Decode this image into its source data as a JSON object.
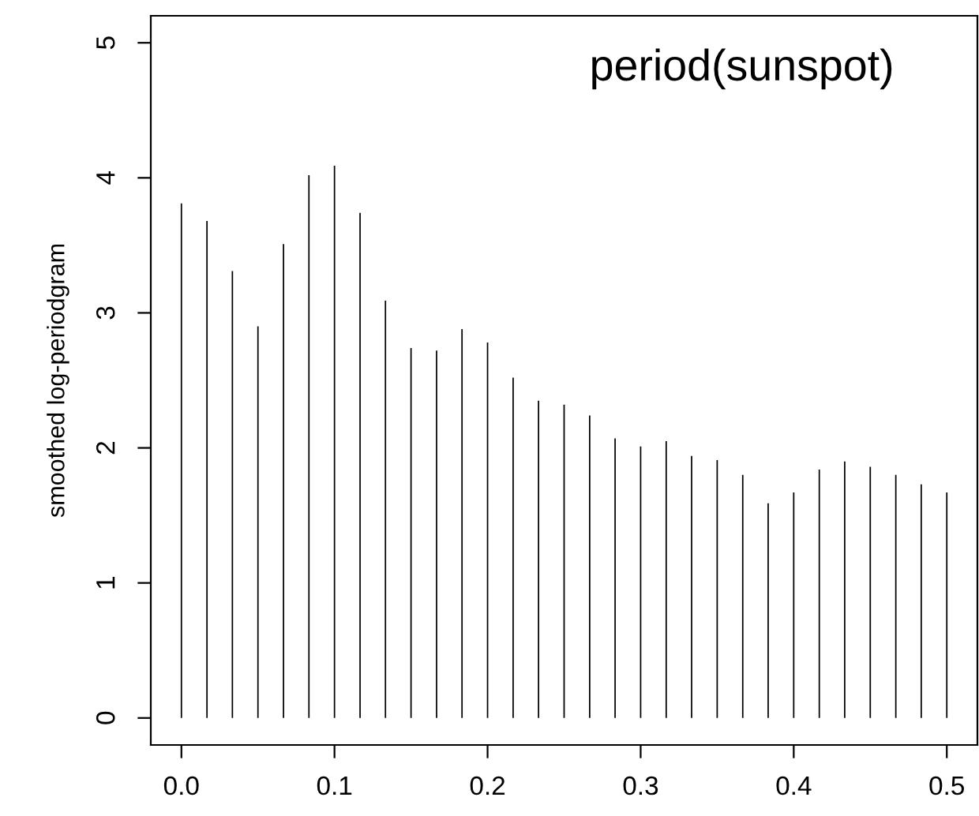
{
  "chart_data": {
    "type": "bar",
    "title": "period(sunspot)",
    "ylabel": "smoothed log-periodgram",
    "x": [
      0,
      0.0167,
      0.0333,
      0.05,
      0.0667,
      0.0833,
      0.1,
      0.1167,
      0.1333,
      0.15,
      0.1667,
      0.1833,
      0.2,
      0.2167,
      0.2333,
      0.25,
      0.2667,
      0.2833,
      0.3,
      0.3167,
      0.3333,
      0.35,
      0.3667,
      0.3833,
      0.4,
      0.4167,
      0.4333,
      0.45,
      0.4667,
      0.4833,
      0.5
    ],
    "values": [
      3.81,
      3.68,
      3.31,
      2.9,
      3.51,
      4.02,
      4.09,
      3.74,
      3.09,
      2.74,
      2.72,
      2.88,
      2.78,
      2.52,
      2.35,
      2.32,
      2.24,
      2.07,
      2.01,
      2.05,
      1.94,
      1.91,
      1.8,
      1.59,
      1.67,
      1.84,
      1.9,
      1.86,
      1.8,
      1.73,
      1.67
    ],
    "color": "#000000",
    "xlim": [
      -0.02,
      0.52
    ],
    "xticks": [
      {
        "value": 0,
        "label": "0.0"
      },
      0.1,
      0.2,
      0.3,
      0.4,
      0.5
    ],
    "ylim": [
      -0.2,
      5.2
    ],
    "yticks": [
      0,
      1,
      2,
      3,
      4,
      5
    ],
    "grid": false
  }
}
